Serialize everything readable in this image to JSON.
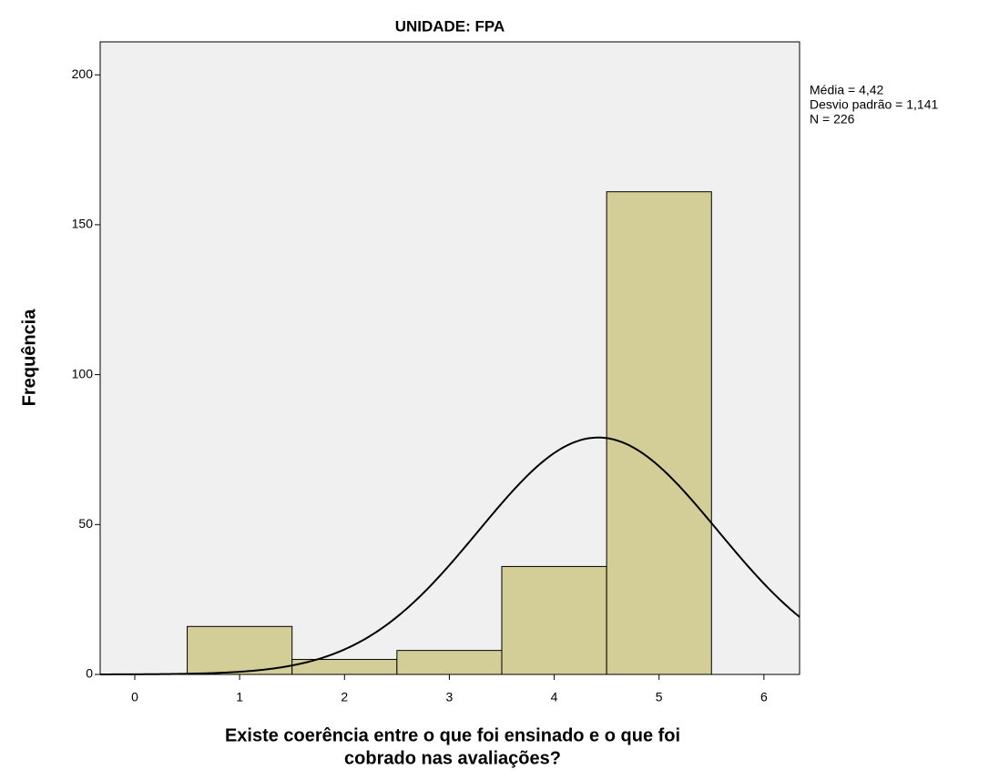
{
  "chart_data": {
    "type": "histogram",
    "title": "UNIDADE: FPA",
    "xlabel": [
      "Existe coerência entre o que foi ensinado e o que foi",
      "cobrado nas avaliações?"
    ],
    "ylabel": "Frequência",
    "bins": [
      0.5,
      1.5,
      2.5,
      3.5,
      4.5,
      5.5
    ],
    "counts": [
      16,
      5,
      8,
      36,
      161
    ],
    "color": "#d3ce98",
    "background": "#f0f0f0",
    "xlim": [
      -0.33,
      6.34
    ],
    "xticks": [
      0,
      1,
      2,
      3,
      4,
      5,
      6
    ],
    "ylim": [
      0,
      211
    ],
    "yticks": [
      0,
      50,
      100,
      150,
      200
    ],
    "curve": {
      "mean": 4.42,
      "sd": 1.141,
      "n": 226
    },
    "annotations": [
      "Média = 4,42",
      "Desvio padrão = 1,141",
      "N = 226"
    ]
  }
}
